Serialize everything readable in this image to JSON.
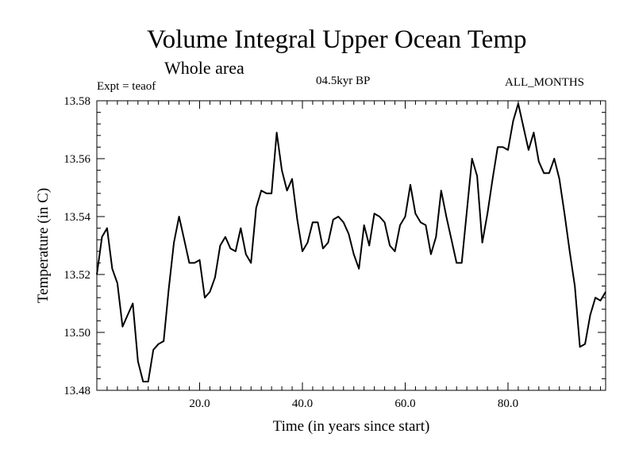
{
  "header": {
    "title": "Volume Integral Upper Ocean Temp",
    "subtitle": "Whole area",
    "expt": "Expt = teaof",
    "period": "04.5kyr BP",
    "months": "ALL_MONTHS"
  },
  "chart_data": {
    "type": "line",
    "title": "Volume Integral Upper Ocean Temp",
    "subtitle": "Whole area",
    "xlabel": "Time (in years since start)",
    "ylabel": "Temperature (in C)",
    "xlim": [
      0,
      99
    ],
    "ylim": [
      13.48,
      13.58
    ],
    "x_ticks": [
      20,
      40,
      60,
      80
    ],
    "x_tick_labels": [
      "20.0",
      "40.0",
      "60.0",
      "80.0"
    ],
    "y_ticks": [
      13.48,
      13.5,
      13.52,
      13.54,
      13.56,
      13.58
    ],
    "y_tick_labels": [
      "13.48",
      "13.50",
      "13.52",
      "13.54",
      "13.56",
      "13.58"
    ],
    "line_color": "#000000",
    "series": [
      {
        "name": "Temperature",
        "x": [
          0,
          1,
          2,
          3,
          4,
          5,
          6,
          7,
          8,
          9,
          10,
          11,
          12,
          13,
          14,
          15,
          16,
          17,
          18,
          19,
          20,
          21,
          22,
          23,
          24,
          25,
          26,
          27,
          28,
          29,
          30,
          31,
          32,
          33,
          34,
          35,
          36,
          37,
          38,
          39,
          40,
          41,
          42,
          43,
          44,
          45,
          46,
          47,
          48,
          49,
          50,
          51,
          52,
          53,
          54,
          55,
          56,
          57,
          58,
          59,
          60,
          61,
          62,
          63,
          64,
          65,
          66,
          67,
          68,
          69,
          70,
          71,
          72,
          73,
          74,
          75,
          76,
          77,
          78,
          79,
          80,
          81,
          82,
          83,
          84,
          85,
          86,
          87,
          88,
          89,
          90,
          91,
          92,
          93,
          94,
          95,
          96,
          97,
          98,
          99
        ],
        "values": [
          13.52,
          13.533,
          13.536,
          13.522,
          13.517,
          13.502,
          13.506,
          13.51,
          13.49,
          13.483,
          13.483,
          13.494,
          13.496,
          13.497,
          13.515,
          13.531,
          13.54,
          13.532,
          13.524,
          13.524,
          13.525,
          13.512,
          13.514,
          13.519,
          13.53,
          13.533,
          13.529,
          13.528,
          13.536,
          13.527,
          13.524,
          13.543,
          13.549,
          13.548,
          13.548,
          13.569,
          13.556,
          13.549,
          13.553,
          13.539,
          13.528,
          13.531,
          13.538,
          13.538,
          13.529,
          13.531,
          13.539,
          13.54,
          13.538,
          13.534,
          13.527,
          13.522,
          13.537,
          13.53,
          13.541,
          13.54,
          13.538,
          13.53,
          13.528,
          13.537,
          13.54,
          13.551,
          13.541,
          13.538,
          13.537,
          13.527,
          13.533,
          13.549,
          13.54,
          13.532,
          13.524,
          13.524,
          13.542,
          13.56,
          13.554,
          13.531,
          13.541,
          13.553,
          13.564,
          13.564,
          13.563,
          13.573,
          13.579,
          13.571,
          13.563,
          13.569,
          13.559,
          13.555,
          13.555,
          13.56,
          13.553,
          13.541,
          13.528,
          13.516,
          13.495,
          13.496,
          13.506,
          13.512,
          13.511,
          13.514
        ]
      }
    ]
  }
}
